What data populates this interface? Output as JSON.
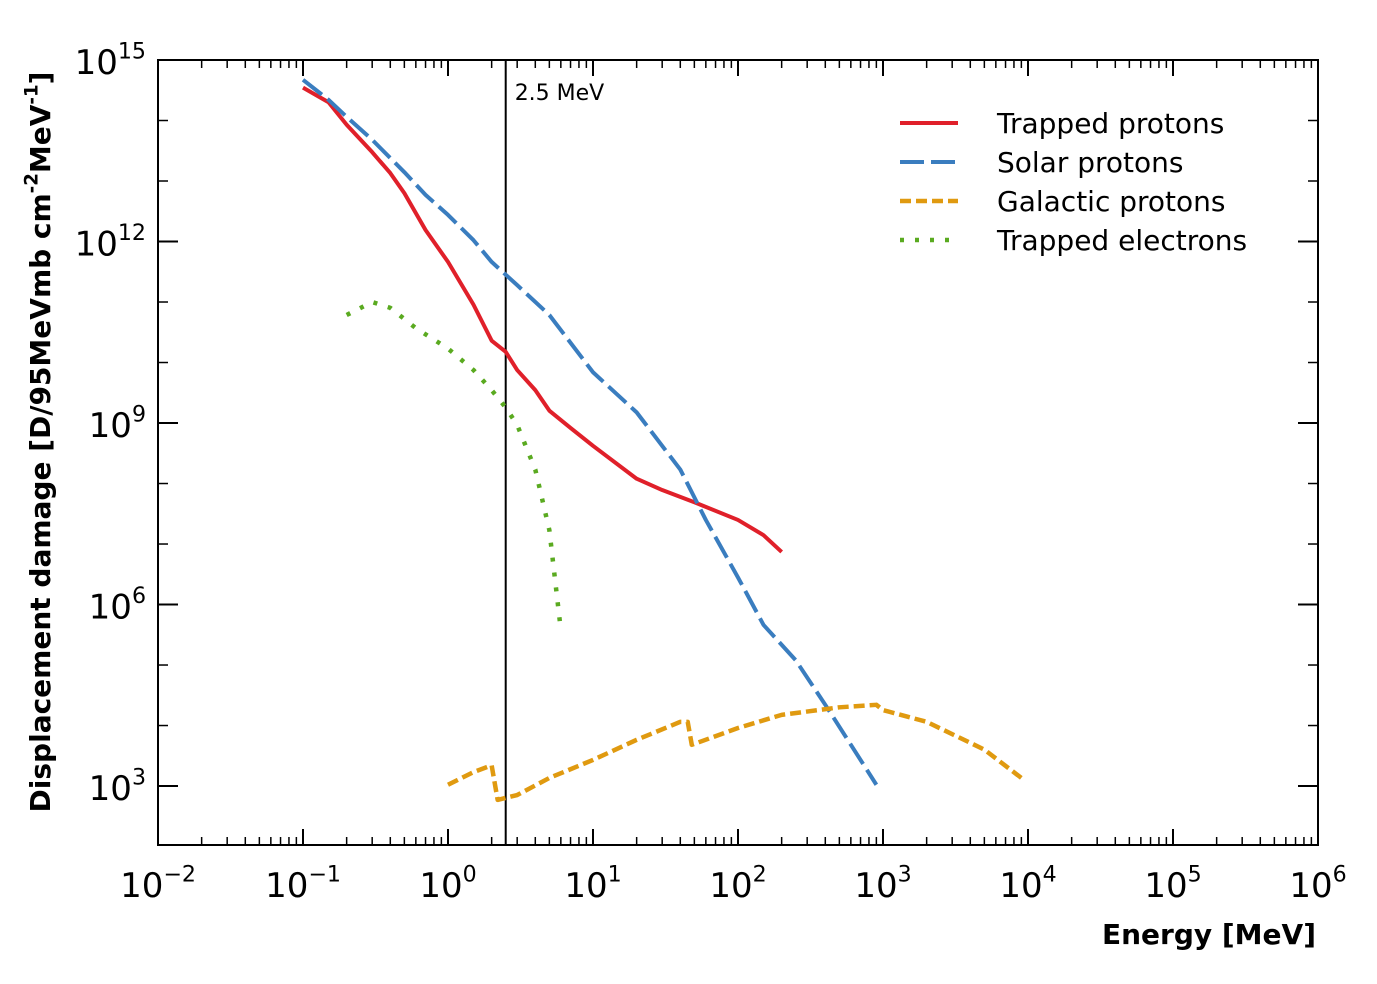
{
  "chart_data": {
    "type": "line",
    "xlabel": "Energy [MeV]",
    "ylabel": "Displacement damage [D/95MeVmb cm^{-2}MeV^{-1}]",
    "xscale": "log",
    "yscale": "log",
    "xlim": [
      0.01,
      1000000
    ],
    "ylim": [
      106,
      1000000000000000.0
    ],
    "xticks": [
      {
        "value": 0.01,
        "label": "10^{−2}"
      },
      {
        "value": 0.1,
        "label": "10^{−1}"
      },
      {
        "value": 1,
        "label": "10^{0}"
      },
      {
        "value": 10,
        "label": "10^{1}"
      },
      {
        "value": 100,
        "label": "10^{2}"
      },
      {
        "value": 1000,
        "label": "10^{3}"
      },
      {
        "value": 10000,
        "label": "10^{4}"
      },
      {
        "value": 100000,
        "label": "10^{5}"
      },
      {
        "value": 1000000,
        "label": "10^{6}"
      }
    ],
    "yticks": [
      {
        "value": 1000,
        "label": "10^{3}"
      },
      {
        "value": 1000000,
        "label": "10^{6}"
      },
      {
        "value": 1000000000.0,
        "label": "10^{9}"
      },
      {
        "value": 1000000000000.0,
        "label": "10^{12}"
      },
      {
        "value": 1000000000000000.0,
        "label": "10^{15}"
      }
    ],
    "legend": "upper right",
    "vline": {
      "x": 2.5,
      "label": "2.5 MeV",
      "color": "#000000"
    },
    "series": [
      {
        "name": "Trapped protons",
        "color": "#e0202a",
        "style": "solid",
        "x": [
          0.1,
          0.15,
          0.2,
          0.3,
          0.4,
          0.5,
          0.7,
          1,
          1.5,
          2,
          2.5,
          3,
          4,
          5,
          7,
          10,
          20,
          30,
          50,
          100,
          150,
          200
        ],
        "values": [
          350000000000000.0,
          200000000000000.0,
          85000000000000.0,
          30000000000000.0,
          13500000000000.0,
          6300000000000.0,
          1550000000000.0,
          460000000000.0,
          90000000000.0,
          23000000000.0,
          15000000000.0,
          7500000000.0,
          3500000000.0,
          1600000000.0,
          830000000.0,
          420000000.0,
          120000000.0,
          78000000.0,
          49000000.0,
          25000000.0,
          14000000.0,
          7400000.0
        ]
      },
      {
        "name": "Solar protons",
        "color": "#3a7dbf",
        "style": "dashed",
        "x": [
          0.1,
          0.15,
          0.2,
          0.3,
          0.5,
          0.7,
          1,
          1.5,
          2,
          3,
          5,
          10,
          20,
          40,
          60,
          100,
          150,
          250,
          400,
          700,
          900
        ],
        "values": [
          470000000000000.0,
          220000000000000.0,
          115000000000000.0,
          48000000000000.0,
          14000000000000.0,
          5900000000000.0,
          2750000000000.0,
          1050000000000.0,
          460000000000.0,
          190000000000.0,
          61000000000.0,
          6900000000.0,
          1500000000.0,
          170000000.0,
          25000000.0,
          2800000.0,
          460000,
          120000,
          22000,
          2700,
          1050
        ]
      },
      {
        "name": "Galactic protons",
        "color": "#e09a10",
        "style": "short-dashed",
        "x": [
          1,
          1.5,
          2,
          2.2,
          3,
          5,
          10,
          20,
          40,
          45,
          48,
          100,
          200,
          500,
          900,
          1000,
          2000,
          5000,
          9000
        ],
        "values": [
          1050,
          1700,
          2200,
          590,
          710,
          1360,
          2700,
          5800,
          11500,
          11500,
          4800,
          9100,
          15000,
          20000,
          22000,
          18000,
          11500,
          4000,
          1360
        ]
      },
      {
        "name": "Trapped electrons",
        "color": "#5aaa20",
        "style": "dotted",
        "x": [
          0.2,
          0.3,
          0.4,
          0.6,
          1,
          1.5,
          2,
          2.5,
          3,
          4,
          5,
          6
        ],
        "values": [
          61000000000.0,
          100000000000.0,
          80000000000.0,
          37000000000.0,
          17000000000.0,
          7500000000.0,
          3500000000.0,
          1800000000.0,
          930000000.0,
          170000000.0,
          17000000.0,
          380000
        ]
      }
    ]
  }
}
